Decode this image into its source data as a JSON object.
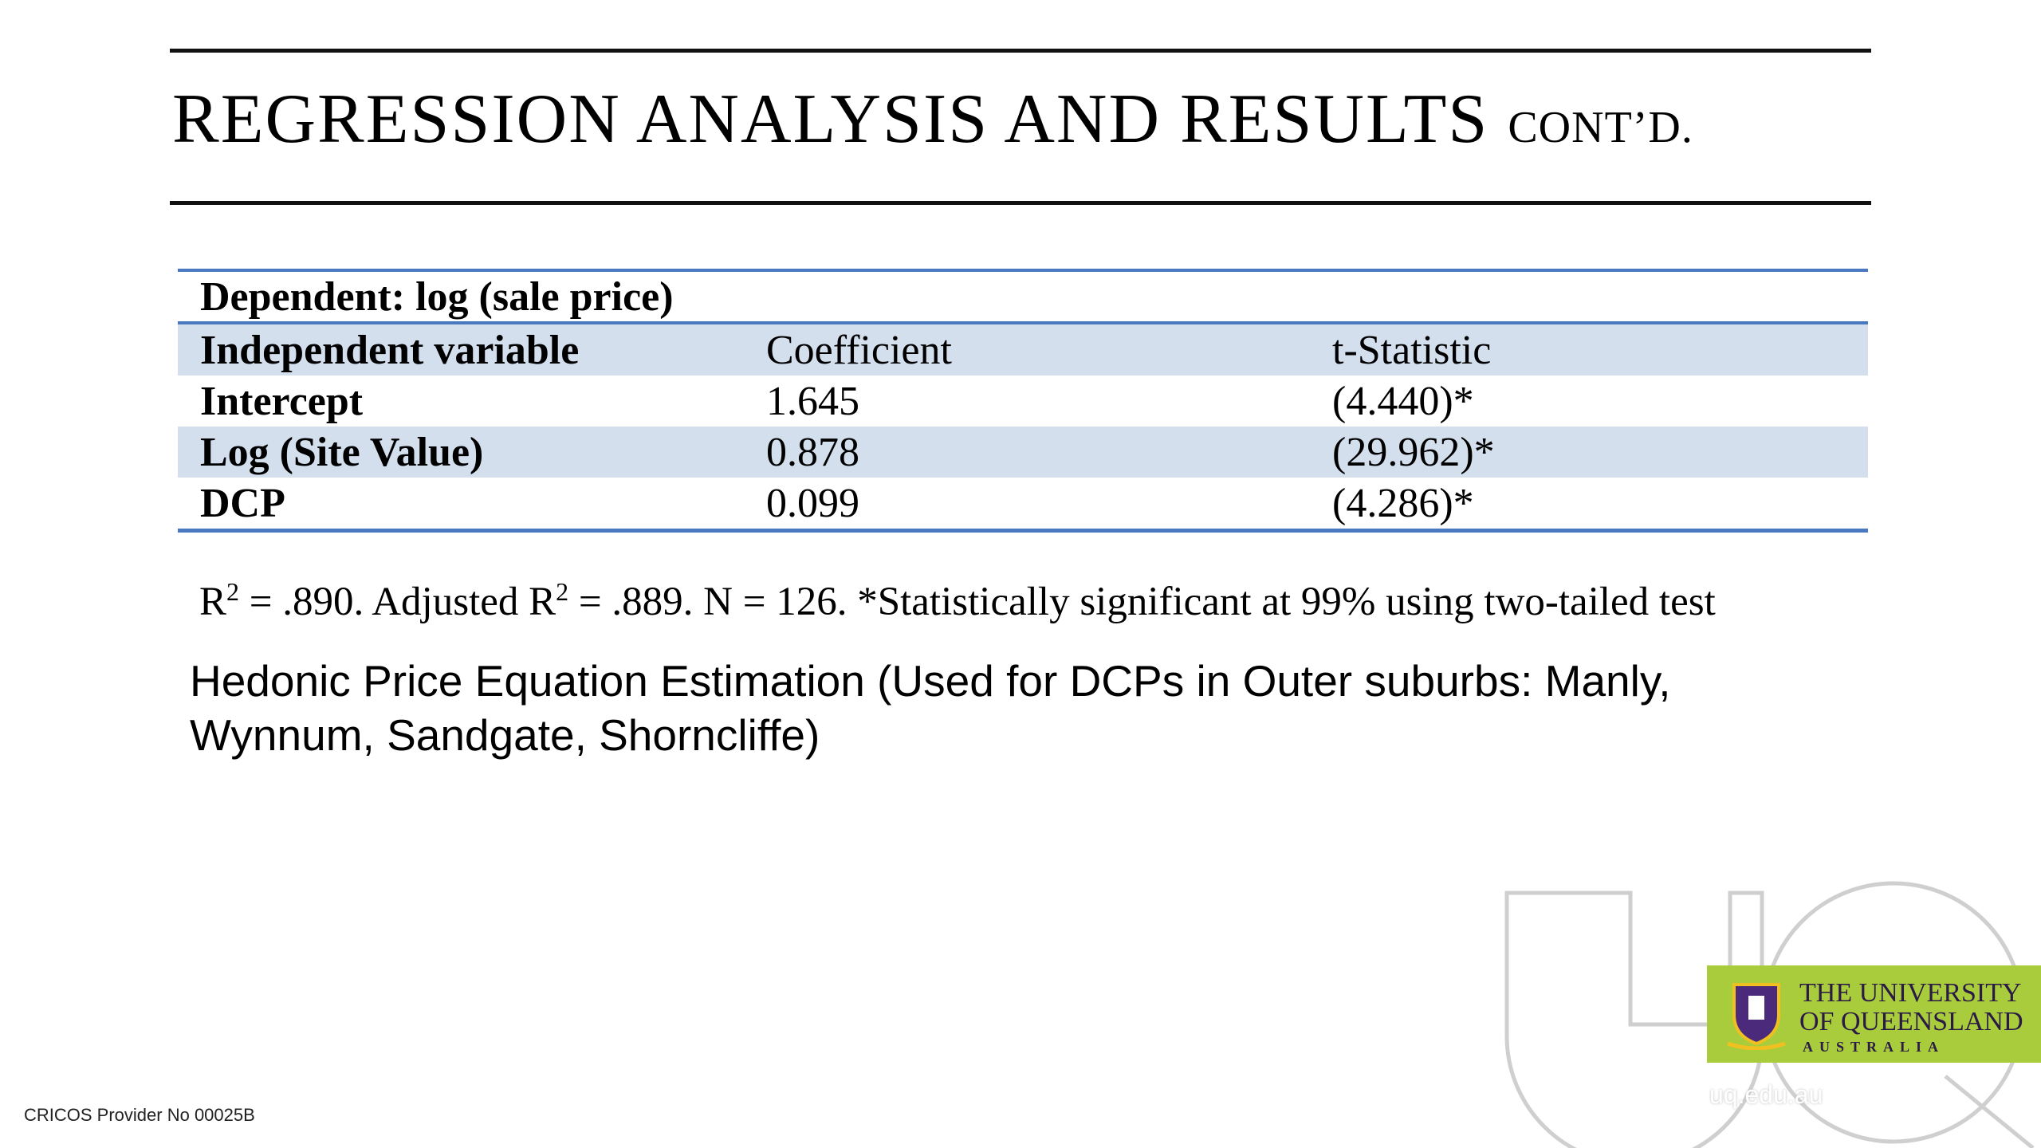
{
  "slide": {
    "title_main": "REGRESSION ANALYSIS AND RESULTS",
    "title_suffix": "CONT’D.",
    "caption": "Hedonic Price Equation Estimation (Used for DCPs in Outer suburbs: Manly, Wynnum, Sandgate, Shorncliffe)",
    "footer_cricos": "CRICOS Provider No 00025B"
  },
  "table": {
    "dependent_label": "Dependent: log (sale price)",
    "headers": [
      "Independent variable",
      "Coefficient",
      "t-Statistic"
    ],
    "rows": [
      {
        "variable": "Intercept",
        "coefficient": "1.645",
        "t_statistic": "(4.440)*"
      },
      {
        "variable": "Log (Site Value)",
        "coefficient": "0.878",
        "t_statistic": "(29.962)*"
      },
      {
        "variable": "DCP",
        "coefficient": "0.099",
        "t_statistic": "(4.286)*"
      }
    ],
    "note": {
      "r_label": "R",
      "sup": "2",
      "r2_value": " = .890. Adjusted R",
      "rest": " = .889. N = 126. *Statistically significant at 99% using two-tailed test"
    }
  },
  "branding": {
    "uni_line1": "THE UNIVERSITY",
    "uni_line2": "OF QUEENSLAND",
    "uni_line3": "AUSTRALIA",
    "website": "uq.edu.au",
    "logo_color": "#a8cc3b",
    "accent_color": "#4a78c0",
    "row_shade": "#d4dfee"
  }
}
